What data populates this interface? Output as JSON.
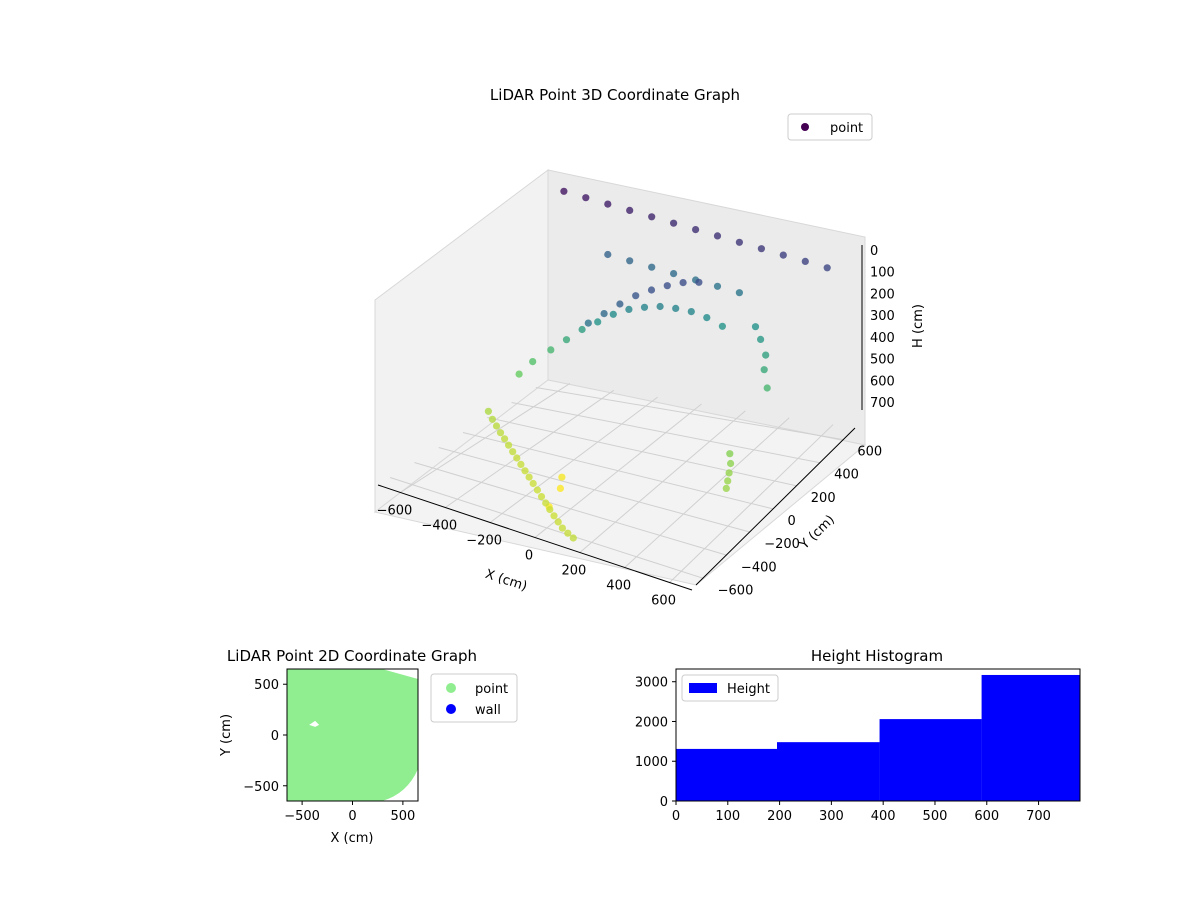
{
  "chart_data": [
    {
      "type": "scatter",
      "projection": "3d",
      "title": "LiDAR Point 3D Coordinate Graph",
      "xlabel": "X (cm)",
      "ylabel": "Y (cm)",
      "zlabel": "H (cm)",
      "xlim": [
        -700,
        700
      ],
      "ylim": [
        -700,
        700
      ],
      "zlim": [
        750,
        0
      ],
      "xticks": [
        "−600",
        "−400",
        "−200",
        "0",
        "200",
        "400",
        "600"
      ],
      "yticks": [
        "−600",
        "−400",
        "−200",
        "0",
        "200",
        "400",
        "600"
      ],
      "zticks": [
        "0",
        "100",
        "200",
        "300",
        "400",
        "500",
        "600",
        "700"
      ],
      "colormap": "viridis",
      "grid": true,
      "legend": {
        "placement": "top-right",
        "entries": [
          {
            "label": "point",
            "color": "#440154"
          }
        ]
      },
      "series": [
        {
          "name": "point",
          "points": [
            [
              -640,
              100,
              690
            ],
            [
              -600,
              60,
              700
            ],
            [
              -560,
              20,
              705
            ],
            [
              -520,
              -20,
              710
            ],
            [
              -480,
              -60,
              712
            ],
            [
              -440,
              -100,
              715
            ],
            [
              -400,
              -140,
              718
            ],
            [
              -360,
              -180,
              720
            ],
            [
              -320,
              -220,
              722
            ],
            [
              -280,
              -260,
              724
            ],
            [
              -240,
              -300,
              725
            ],
            [
              -200,
              -340,
              726
            ],
            [
              -160,
              -380,
              727
            ],
            [
              -120,
              -420,
              728
            ],
            [
              -80,
              -460,
              728
            ],
            [
              -40,
              -500,
              728
            ],
            [
              0,
              -540,
              727
            ],
            [
              40,
              -580,
              725
            ],
            [
              80,
              -620,
              723
            ],
            [
              120,
              -650,
              720
            ],
            [
              160,
              -680,
              716
            ],
            [
              -600,
              280,
              600
            ],
            [
              -560,
              320,
              560
            ],
            [
              -500,
              360,
              520
            ],
            [
              -440,
              380,
              480
            ],
            [
              -380,
              400,
              440
            ],
            [
              -320,
              420,
              410
            ],
            [
              -260,
              440,
              380
            ],
            [
              -200,
              460,
              360
            ],
            [
              -140,
              480,
              350
            ],
            [
              -80,
              500,
              345
            ],
            [
              -20,
              520,
              350
            ],
            [
              40,
              540,
              360
            ],
            [
              100,
              560,
              380
            ],
            [
              160,
              580,
              410
            ],
            [
              -200,
              120,
              300
            ],
            [
              -150,
              160,
              270
            ],
            [
              -100,
              200,
              240
            ],
            [
              -50,
              240,
              215
            ],
            [
              0,
              280,
              200
            ],
            [
              50,
              320,
              190
            ],
            [
              100,
              360,
              185
            ],
            [
              150,
              400,
              190
            ],
            [
              450,
              100,
              640
            ],
            [
              480,
              50,
              650
            ],
            [
              500,
              0,
              660
            ],
            [
              520,
              -50,
              665
            ],
            [
              540,
              -100,
              668
            ],
            [
              300,
              600,
              400
            ],
            [
              350,
              550,
              420
            ],
            [
              400,
              500,
              450
            ],
            [
              420,
              450,
              480
            ],
            [
              460,
              400,
              520
            ],
            [
              -400,
              650,
              250
            ],
            [
              -300,
              650,
              260
            ],
            [
              -200,
              650,
              270
            ],
            [
              -100,
              650,
              280
            ],
            [
              0,
              650,
              290
            ],
            [
              100,
              650,
              300
            ],
            [
              200,
              650,
              310
            ],
            [
              -600,
              650,
              50
            ],
            [
              -500,
              650,
              60
            ],
            [
              -400,
              650,
              70
            ],
            [
              -300,
              650,
              80
            ],
            [
              -200,
              650,
              90
            ],
            [
              -100,
              650,
              100
            ],
            [
              0,
              650,
              110
            ],
            [
              100,
              650,
              120
            ],
            [
              200,
              650,
              130
            ],
            [
              300,
              650,
              140
            ],
            [
              400,
              650,
              150
            ],
            [
              500,
              650,
              160
            ],
            [
              600,
              650,
              170
            ],
            [
              -200,
              -100,
              780
            ],
            [
              -180,
              -150,
              800
            ],
            [
              -150,
              -300,
              810
            ]
          ]
        }
      ]
    },
    {
      "type": "scatter",
      "title": "LiDAR Point 2D Coordinate Graph",
      "xlabel": "X (cm)",
      "ylabel": "Y (cm)",
      "xlim": [
        -650,
        650
      ],
      "ylim": [
        -650,
        650
      ],
      "xticks": [
        "−500",
        "0",
        "500"
      ],
      "yticks": [
        "500",
        "0",
        "−500"
      ],
      "legend": {
        "placement": "outside-right",
        "entries": [
          {
            "label": "point",
            "color": "#90ee90"
          },
          {
            "label": "wall",
            "color": "#0000ff"
          }
        ]
      }
    },
    {
      "type": "bar",
      "title": "Height Histogram",
      "bins": [
        [
          0,
          195
        ],
        [
          195,
          393
        ],
        [
          393,
          590
        ],
        [
          590,
          780
        ]
      ],
      "values": [
        1310,
        1480,
        2060,
        3170
      ],
      "xlim": [
        0,
        780
      ],
      "ylim": [
        0,
        3320
      ],
      "xticks": [
        "0",
        "100",
        "200",
        "300",
        "400",
        "500",
        "600",
        "700"
      ],
      "yticks": [
        "0",
        "1000",
        "2000",
        "3000"
      ],
      "legend": {
        "placement": "top-left",
        "entries": [
          {
            "label": "Height",
            "color": "#0000ff"
          }
        ]
      }
    }
  ]
}
